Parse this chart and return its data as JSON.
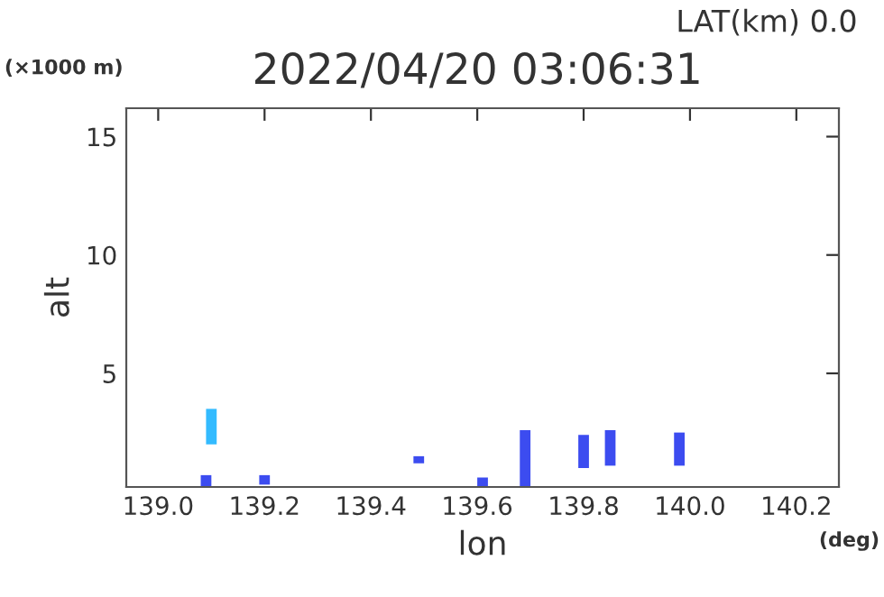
{
  "chart_data": {
    "type": "bar",
    "title": "2022/04/20 03:06:31",
    "xlabel": "lon",
    "ylabel": "alt",
    "annotations": [
      "LAT(km) 0.0",
      "(×1000 m)",
      "(deg)"
    ],
    "x": [
      139.09,
      139.1,
      139.2,
      139.49,
      139.61,
      139.69,
      139.8,
      139.85,
      139.98
    ],
    "base": [
      0.2,
      2.0,
      0.3,
      1.2,
      0.2,
      0.2,
      1.0,
      1.1,
      1.1
    ],
    "values": [
      0.5,
      1.5,
      0.4,
      0.3,
      0.4,
      2.4,
      1.4,
      1.5,
      1.4
    ],
    "colors": [
      "#3c4cf0",
      "#33bbff",
      "#3c4cf0",
      "#3c4cf0",
      "#3c4cf0",
      "#3c4cf0",
      "#3c4cf0",
      "#3c4cf0",
      "#3c4cf0"
    ],
    "xlim": [
      138.94,
      140.28
    ],
    "ylim": [
      0.2,
      16.2
    ],
    "xticks": [
      {
        "value": 139.0,
        "label": "139.0"
      },
      {
        "value": 139.2,
        "label": "139.2"
      },
      {
        "value": 139.4,
        "label": "139.4"
      },
      {
        "value": 139.6,
        "label": "139.6"
      },
      {
        "value": 139.8,
        "label": "139.8"
      },
      {
        "value": 140.0,
        "label": "140.0"
      },
      {
        "value": 140.2,
        "label": "140.2"
      }
    ],
    "yticks": [
      5,
      10,
      15
    ],
    "grid": false,
    "legend": false
  }
}
